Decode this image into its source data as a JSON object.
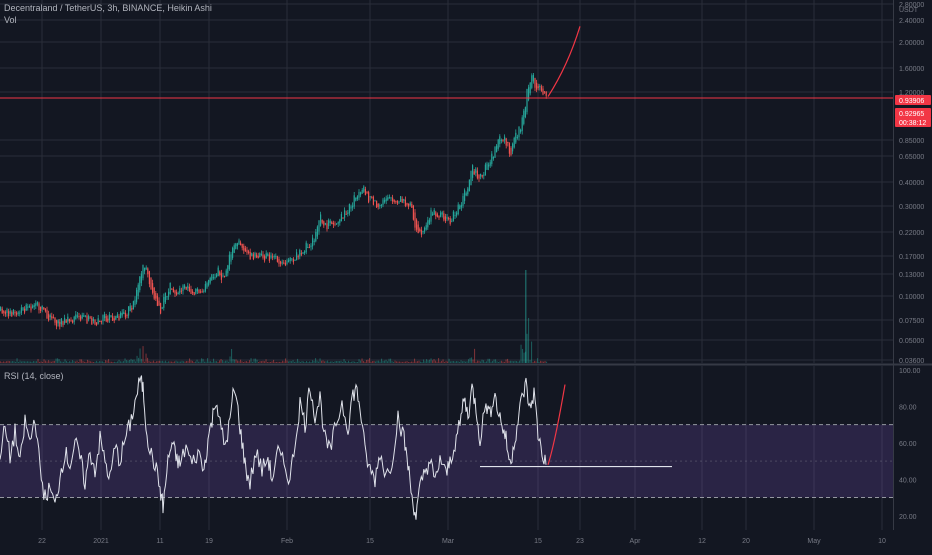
{
  "header": {
    "symbol_line": "Decentraland / TetherUS, 3h, BINANCE, Heikin Ashi",
    "vol_label": "Vol"
  },
  "rsi_panel": {
    "label": "RSI (14, close)"
  },
  "colors": {
    "background": "#131722",
    "grid": "#2a2e39",
    "up": "#26a69a",
    "down": "#ef5350",
    "rsi_line": "#e0e3eb",
    "rsi_band": "#7e57c2",
    "price_line": "#f23645",
    "projection": "#f23645"
  },
  "chart_data": [
    {
      "type": "candlestick",
      "title": "Decentraland / TetherUS, 3h, BINANCE, Heikin Ashi",
      "y_axis_unit": "USDT",
      "y_scale": "log",
      "y_ticks": [
        "2.80000",
        "2.40000",
        "2.00000",
        "1.60000",
        "1.20000",
        "0.85000",
        "0.65000",
        "0.40000",
        "0.30000",
        "0.22000",
        "0.17000",
        "0.13000",
        "0.10000",
        "0.07500",
        "0.05000",
        "0.03600"
      ],
      "x_ticks": [
        "22",
        "2021",
        "11",
        "19",
        "Feb",
        "15",
        "Mar",
        "15",
        "23",
        "Apr",
        "12",
        "20",
        "May",
        "10"
      ],
      "price_tags": [
        "0.93906",
        "0.92965",
        "00:38:12"
      ],
      "series_path": [
        [
          0,
          0.085
        ],
        [
          10,
          0.083
        ],
        [
          20,
          0.086
        ],
        [
          30,
          0.087
        ],
        [
          38,
          0.09
        ],
        [
          45,
          0.082
        ],
        [
          55,
          0.072
        ],
        [
          65,
          0.076
        ],
        [
          75,
          0.078
        ],
        [
          85,
          0.077
        ],
        [
          95,
          0.075
        ],
        [
          105,
          0.079
        ],
        [
          115,
          0.077
        ],
        [
          125,
          0.082
        ],
        [
          132,
          0.09
        ],
        [
          138,
          0.11
        ],
        [
          143,
          0.15
        ],
        [
          148,
          0.12
        ],
        [
          155,
          0.095
        ],
        [
          160,
          0.085
        ],
        [
          165,
          0.1
        ],
        [
          170,
          0.115
        ],
        [
          175,
          0.105
        ],
        [
          185,
          0.11
        ],
        [
          195,
          0.105
        ],
        [
          205,
          0.11
        ],
        [
          212,
          0.125
        ],
        [
          218,
          0.135
        ],
        [
          222,
          0.12
        ],
        [
          228,
          0.15
        ],
        [
          232,
          0.18
        ],
        [
          236,
          0.19
        ],
        [
          242,
          0.165
        ],
        [
          250,
          0.155
        ],
        [
          258,
          0.16
        ],
        [
          265,
          0.155
        ],
        [
          272,
          0.152
        ],
        [
          280,
          0.15
        ],
        [
          288,
          0.145
        ],
        [
          295,
          0.155
        ],
        [
          300,
          0.165
        ],
        [
          305,
          0.175
        ],
        [
          310,
          0.18
        ],
        [
          315,
          0.2
        ],
        [
          320,
          0.24
        ],
        [
          325,
          0.22
        ],
        [
          330,
          0.23
        ],
        [
          338,
          0.24
        ],
        [
          345,
          0.255
        ],
        [
          352,
          0.29
        ],
        [
          358,
          0.33
        ],
        [
          362,
          0.34
        ],
        [
          368,
          0.3
        ],
        [
          375,
          0.28
        ],
        [
          385,
          0.29
        ],
        [
          395,
          0.3
        ],
        [
          405,
          0.29
        ],
        [
          410,
          0.28
        ],
        [
          415,
          0.22
        ],
        [
          420,
          0.2
        ],
        [
          425,
          0.23
        ],
        [
          432,
          0.26
        ],
        [
          440,
          0.25
        ],
        [
          448,
          0.23
        ],
        [
          455,
          0.26
        ],
        [
          462,
          0.3
        ],
        [
          468,
          0.35
        ],
        [
          472,
          0.42
        ],
        [
          480,
          0.38
        ],
        [
          488,
          0.45
        ],
        [
          495,
          0.52
        ],
        [
          500,
          0.6
        ],
        [
          505,
          0.58
        ],
        [
          510,
          0.5
        ],
        [
          515,
          0.6
        ],
        [
          520,
          0.68
        ],
        [
          524,
          0.82
        ],
        [
          528,
          1.1
        ],
        [
          532,
          1.2
        ],
        [
          536,
          1.0
        ],
        [
          540,
          1.05
        ],
        [
          546,
          0.93
        ]
      ],
      "projection_curve": [
        [
          548,
          0.95
        ],
        [
          558,
          1.05
        ],
        [
          568,
          1.35
        ],
        [
          575,
          1.7
        ],
        [
          580,
          2.1
        ]
      ],
      "horizontal_line_price": 0.935
    },
    {
      "type": "line",
      "title": "RSI (14, close)",
      "y_ticks": [
        "100.00",
        "80.00",
        "60.00",
        "40.00",
        "20.00"
      ],
      "ylim": [
        10,
        100
      ],
      "band": [
        30,
        70
      ],
      "support_line": {
        "x_start": 480,
        "x_end": 672,
        "value": 47
      },
      "projection_curve": [
        [
          548,
          48
        ],
        [
          555,
          60
        ],
        [
          560,
          78
        ],
        [
          565,
          92
        ]
      ],
      "series_path": [
        [
          0,
          55
        ],
        [
          5,
          68
        ],
        [
          10,
          52
        ],
        [
          15,
          66
        ],
        [
          20,
          48
        ],
        [
          25,
          72
        ],
        [
          30,
          60
        ],
        [
          35,
          75
        ],
        [
          40,
          45
        ],
        [
          45,
          30
        ],
        [
          50,
          35
        ],
        [
          55,
          25
        ],
        [
          60,
          42
        ],
        [
          65,
          55
        ],
        [
          70,
          48
        ],
        [
          75,
          60
        ],
        [
          80,
          52
        ],
        [
          85,
          38
        ],
        [
          90,
          55
        ],
        [
          95,
          45
        ],
        [
          100,
          62
        ],
        [
          105,
          50
        ],
        [
          110,
          40
        ],
        [
          115,
          58
        ],
        [
          120,
          50
        ],
        [
          125,
          62
        ],
        [
          130,
          70
        ],
        [
          135,
          82
        ],
        [
          140,
          95
        ],
        [
          143,
          90
        ],
        [
          146,
          70
        ],
        [
          150,
          55
        ],
        [
          155,
          48
        ],
        [
          160,
          35
        ],
        [
          163,
          25
        ],
        [
          168,
          50
        ],
        [
          172,
          60
        ],
        [
          176,
          52
        ],
        [
          180,
          48
        ],
        [
          186,
          58
        ],
        [
          192,
          48
        ],
        [
          198,
          55
        ],
        [
          204,
          45
        ],
        [
          208,
          62
        ],
        [
          212,
          72
        ],
        [
          216,
          85
        ],
        [
          220,
          70
        ],
        [
          225,
          58
        ],
        [
          230,
          72
        ],
        [
          234,
          90
        ],
        [
          238,
          78
        ],
        [
          242,
          60
        ],
        [
          246,
          45
        ],
        [
          250,
          38
        ],
        [
          256,
          55
        ],
        [
          262,
          45
        ],
        [
          268,
          52
        ],
        [
          272,
          40
        ],
        [
          278,
          55
        ],
        [
          284,
          48
        ],
        [
          290,
          40
        ],
        [
          295,
          60
        ],
        [
          300,
          82
        ],
        [
          305,
          70
        ],
        [
          310,
          92
        ],
        [
          315,
          75
        ],
        [
          320,
          85
        ],
        [
          325,
          62
        ],
        [
          330,
          55
        ],
        [
          336,
          70
        ],
        [
          342,
          82
        ],
        [
          348,
          68
        ],
        [
          352,
          85
        ],
        [
          356,
          90
        ],
        [
          360,
          80
        ],
        [
          365,
          55
        ],
        [
          370,
          45
        ],
        [
          375,
          40
        ],
        [
          380,
          55
        ],
        [
          386,
          42
        ],
        [
          392,
          50
        ],
        [
          398,
          75
        ],
        [
          404,
          62
        ],
        [
          408,
          48
        ],
        [
          412,
          30
        ],
        [
          416,
          20
        ],
        [
          420,
          35
        ],
        [
          425,
          45
        ],
        [
          430,
          50
        ],
        [
          435,
          38
        ],
        [
          440,
          52
        ],
        [
          446,
          42
        ],
        [
          450,
          50
        ],
        [
          455,
          60
        ],
        [
          460,
          70
        ],
        [
          464,
          85
        ],
        [
          468,
          75
        ],
        [
          472,
          90
        ],
        [
          476,
          80
        ],
        [
          480,
          62
        ],
        [
          486,
          82
        ],
        [
          490,
          75
        ],
        [
          494,
          88
        ],
        [
          498,
          78
        ],
        [
          502,
          70
        ],
        [
          506,
          62
        ],
        [
          510,
          48
        ],
        [
          514,
          60
        ],
        [
          518,
          72
        ],
        [
          522,
          85
        ],
        [
          526,
          92
        ],
        [
          530,
          78
        ],
        [
          534,
          88
        ],
        [
          538,
          65
        ],
        [
          542,
          55
        ],
        [
          546,
          48
        ]
      ]
    }
  ]
}
